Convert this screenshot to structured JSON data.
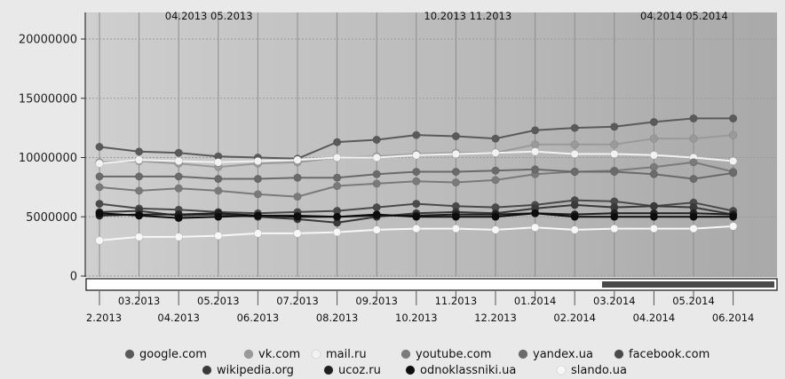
{
  "chart_data": {
    "type": "line",
    "title": "",
    "xlabel": "",
    "ylabel": "",
    "ylim": [
      0,
      20000000
    ],
    "y_ticks": [
      "0",
      "5000000",
      "10000000",
      "15000000",
      "20000000"
    ],
    "x": [
      "02.2013",
      "03.2013",
      "04.2013",
      "05.2013",
      "06.2013",
      "07.2013",
      "08.2013",
      "09.2013",
      "10.2013",
      "11.2013",
      "12.2013",
      "01.2014",
      "02.2014",
      "03.2014",
      "04.2014",
      "05.2014",
      "06.2014"
    ],
    "x_tick_labels_upper": [
      "03.2013",
      "05.2013",
      "07.2013",
      "09.2013",
      "11.2013",
      "01.2014",
      "03.2014",
      "05.2014"
    ],
    "x_tick_labels_lower": [
      "2.2013",
      "04.2013",
      "06.2013",
      "08.2013",
      "10.2013",
      "12.2013",
      "02.2014",
      "04.2014",
      "06.2014"
    ],
    "top_labels": [
      "04.2013 05.2013",
      "10.2013 11.2013",
      "04.2014 05.2014"
    ],
    "grid": true,
    "legend_position": "bottom",
    "series": [
      {
        "name": "google.com",
        "color": "#5a5a5a",
        "values": [
          10900000,
          10500000,
          10400000,
          10100000,
          10000000,
          9900000,
          11300000,
          11500000,
          11900000,
          11800000,
          11600000,
          12300000,
          12500000,
          12600000,
          13000000,
          13300000,
          13300000
        ]
      },
      {
        "name": "vk.com",
        "color": "#9a9a9a",
        "values": [
          9600000,
          9700000,
          9500000,
          9200000,
          9500000,
          9600000,
          10000000,
          10100000,
          10300000,
          10400000,
          10400000,
          11100000,
          11100000,
          11100000,
          11600000,
          11600000,
          11900000
        ]
      },
      {
        "name": "mail.ru",
        "color": "#f2f2f2",
        "values": [
          9500000,
          9800000,
          9700000,
          9600000,
          9700000,
          9800000,
          10000000,
          10000000,
          10200000,
          10300000,
          10400000,
          10500000,
          10300000,
          10300000,
          10200000,
          10000000,
          9700000
        ]
      },
      {
        "name": "youtube.com",
        "color": "#7a7a7a",
        "values": [
          7500000,
          7200000,
          7400000,
          7200000,
          6900000,
          6700000,
          7600000,
          7800000,
          8000000,
          7900000,
          8100000,
          8600000,
          8800000,
          8900000,
          9200000,
          9600000,
          8800000
        ]
      },
      {
        "name": "yandex.ua",
        "color": "#6a6a6a",
        "values": [
          8400000,
          8400000,
          8400000,
          8200000,
          8200000,
          8300000,
          8300000,
          8600000,
          8800000,
          8800000,
          8900000,
          9000000,
          8800000,
          8800000,
          8600000,
          8200000,
          8700000
        ]
      },
      {
        "name": "facebook.com",
        "color": "#4a4a4a",
        "values": [
          6100000,
          5700000,
          5600000,
          5400000,
          5300000,
          5400000,
          5500000,
          5800000,
          6100000,
          5900000,
          5800000,
          6000000,
          6400000,
          6300000,
          5900000,
          6200000,
          5500000
        ]
      },
      {
        "name": "wikipedia.org",
        "color": "#3a3a3a",
        "values": [
          5400000,
          5500000,
          5100000,
          5200000,
          5000000,
          4800000,
          4500000,
          5000000,
          5300000,
          5400000,
          5300000,
          5700000,
          6000000,
          5800000,
          5900000,
          5800000,
          5200000
        ]
      },
      {
        "name": "ucoz.ru",
        "color": "#202020",
        "values": [
          5100000,
          5200000,
          5200000,
          5300000,
          5100000,
          5100000,
          5000000,
          5100000,
          5100000,
          5200000,
          5200000,
          5300000,
          5200000,
          5300000,
          5300000,
          5300000,
          5200000
        ]
      },
      {
        "name": "odnoklassniki.ua",
        "color": "#0d0d0d",
        "values": [
          5300000,
          5100000,
          4900000,
          5000000,
          5100000,
          5000000,
          5000000,
          5200000,
          5000000,
          5000000,
          5000000,
          5300000,
          5000000,
          5000000,
          5000000,
          5000000,
          5000000
        ]
      },
      {
        "name": "slando.ua",
        "color": "#f7f7f7",
        "values": [
          3000000,
          3300000,
          3300000,
          3400000,
          3600000,
          3600000,
          3700000,
          3900000,
          4000000,
          4000000,
          3900000,
          4100000,
          3900000,
          4000000,
          4000000,
          4000000,
          4200000
        ]
      }
    ]
  }
}
